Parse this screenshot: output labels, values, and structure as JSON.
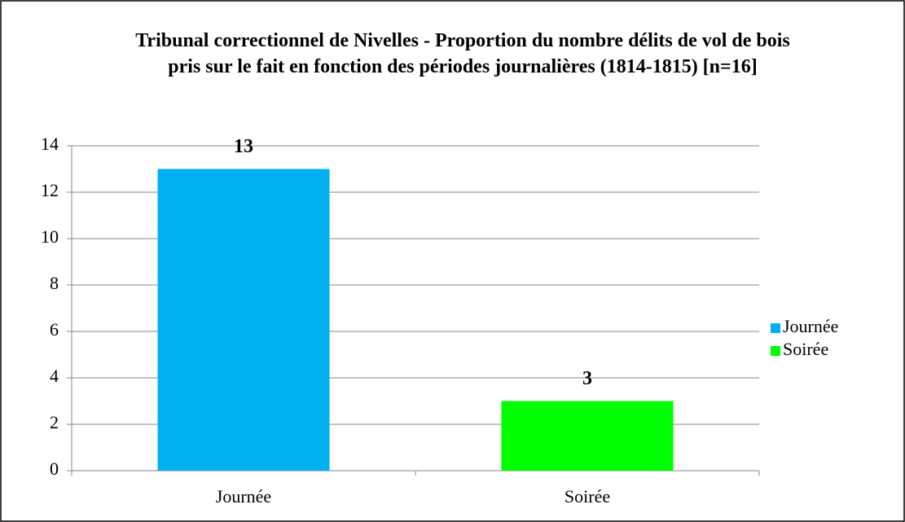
{
  "chart_data": {
    "type": "bar",
    "title": "Tribunal correctionnel de Nivelles - Proportion du nombre délits de vol de bois pris sur le fait en fonction des périodes journalières (1814-1815) [n=16]",
    "categories": [
      "Journée",
      "Soirée"
    ],
    "values": [
      13,
      3
    ],
    "colors": [
      "#00b0f0",
      "#00ff00"
    ],
    "ylim": [
      0,
      14
    ],
    "yticks": [
      0,
      2,
      4,
      6,
      8,
      10,
      12,
      14
    ],
    "grid": true,
    "legend": "right"
  }
}
